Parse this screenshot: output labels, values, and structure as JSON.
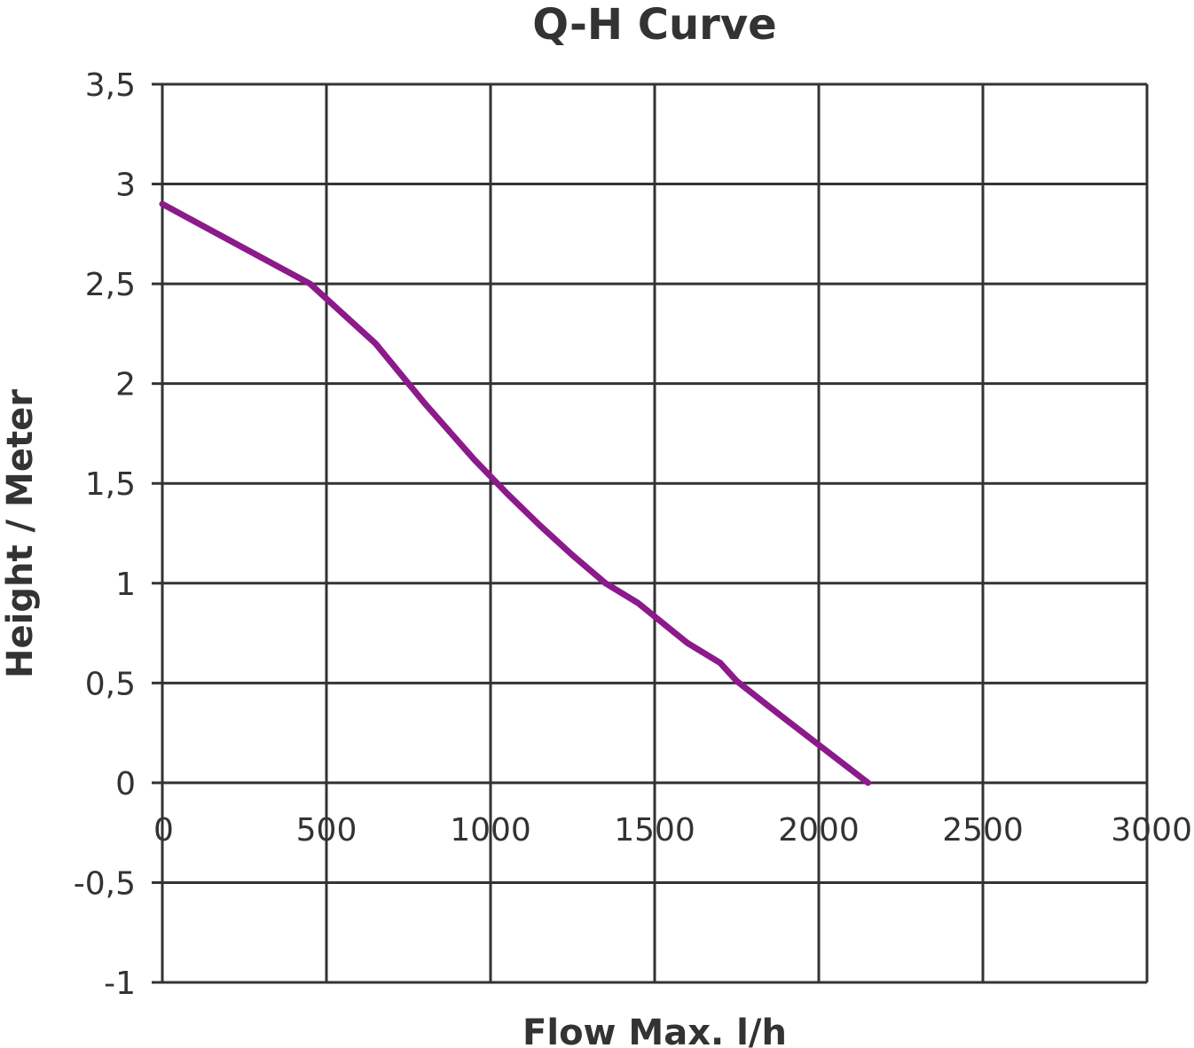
{
  "chart_data": {
    "type": "line",
    "title": "Q-H Curve",
    "xlabel": "Flow Max. l/h",
    "ylabel": "Height / Meter",
    "xlim": [
      0,
      3000
    ],
    "ylim": [
      -1,
      3.5
    ],
    "x_ticks": [
      0,
      500,
      1000,
      1500,
      2000,
      2500,
      3000
    ],
    "y_ticks": [
      -1,
      -0.5,
      0,
      0.5,
      1,
      1.5,
      2,
      2.5,
      3,
      3.5
    ],
    "x_tick_labels": [
      "0",
      "500",
      "1000",
      "1500",
      "2000",
      "2500",
      "3000"
    ],
    "y_tick_labels": [
      "-1",
      "-0,5",
      "0",
      "0,5",
      "1",
      "1,5",
      "2",
      "2,5",
      "3",
      "3,5"
    ],
    "grid": true,
    "legend": "none",
    "series": [
      {
        "color": "#8B1A8B",
        "x": [
          0,
          450,
          650,
          800,
          950,
          1050,
          1150,
          1250,
          1350,
          1450,
          1600,
          1700,
          1750,
          1850,
          2000,
          2150
        ],
        "y": [
          2.9,
          2.5,
          2.2,
          1.9,
          1.62,
          1.45,
          1.29,
          1.14,
          1.0,
          0.9,
          0.7,
          0.6,
          0.51,
          0.38,
          0.19,
          0
        ]
      }
    ]
  }
}
